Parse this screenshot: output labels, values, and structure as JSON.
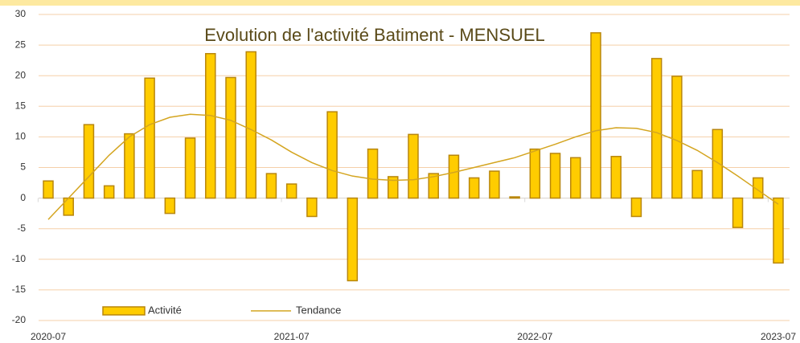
{
  "chart_data": {
    "type": "bar",
    "title": "Evolution de l'activité Batiment - MENSUEL",
    "categories": [
      "2020-07",
      null,
      null,
      null,
      null,
      null,
      null,
      null,
      null,
      null,
      null,
      null,
      "2021-07",
      null,
      null,
      null,
      null,
      null,
      null,
      null,
      null,
      null,
      null,
      null,
      "2022-07",
      null,
      null,
      null,
      null,
      null,
      null,
      null,
      null,
      null,
      null,
      null,
      "2023-07"
    ],
    "series": [
      {
        "name": "Activité",
        "type": "bar",
        "color": "#ffcc00",
        "values": [
          2.8,
          -2.8,
          12,
          2,
          10.5,
          19.6,
          -2.5,
          9.8,
          23.6,
          19.7,
          23.9,
          4,
          2.3,
          -3,
          14.1,
          -13.5,
          8,
          3.5,
          10.4,
          4,
          7,
          3.3,
          4.4,
          0.2,
          8,
          7.3,
          6.6,
          27,
          6.8,
          -3,
          22.8,
          19.9,
          4.5,
          11.2,
          -4.8,
          3.3,
          -10.6
        ]
      },
      {
        "name": "Tendance",
        "type": "line",
        "color": "#d4a520",
        "values": [
          -3.5,
          0,
          3.5,
          7,
          10,
          12,
          13.2,
          13.7,
          13.5,
          12.7,
          11.2,
          9.5,
          7.5,
          5.8,
          4.5,
          3.6,
          3.1,
          2.9,
          3,
          3.5,
          4.2,
          5,
          5.8,
          6.6,
          7.7,
          8.8,
          10,
          11,
          11.5,
          11.4,
          10.7,
          9.4,
          7.8,
          5.8,
          3.6,
          1.3,
          -1
        ]
      }
    ],
    "ylim": [
      -20,
      30
    ],
    "yticks": [
      -20,
      -15,
      -10,
      -5,
      0,
      5,
      10,
      15,
      20,
      25,
      30
    ],
    "grid": true
  }
}
